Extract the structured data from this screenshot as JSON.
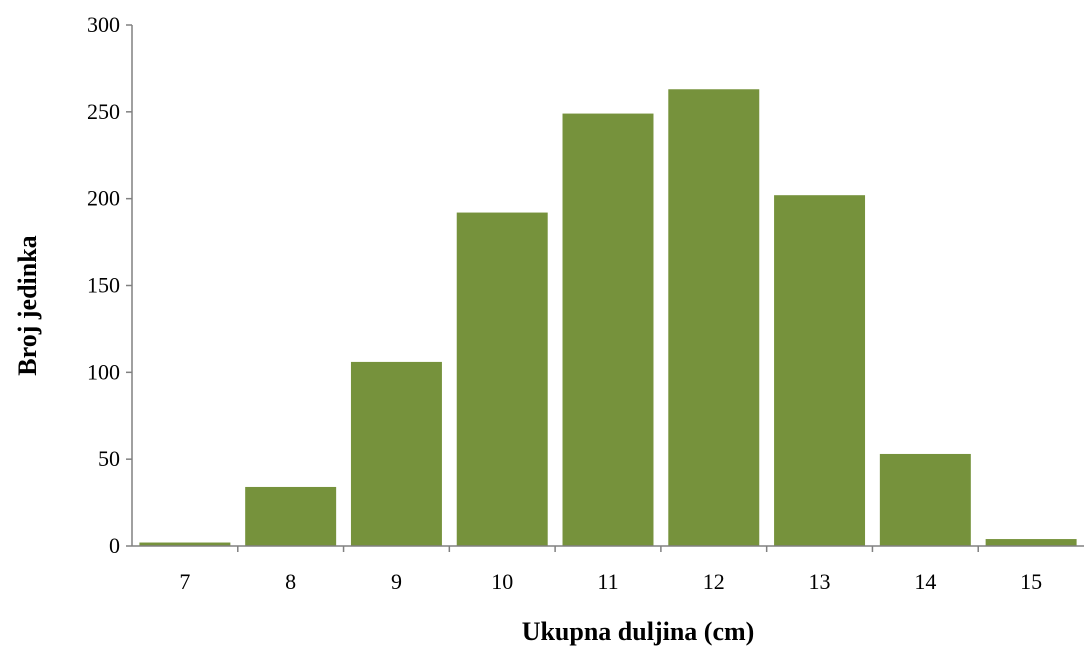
{
  "chart_data": {
    "type": "bar",
    "categories": [
      "7",
      "8",
      "9",
      "10",
      "11",
      "12",
      "13",
      "14",
      "15"
    ],
    "values": [
      2,
      34,
      106,
      192,
      249,
      263,
      202,
      53,
      4
    ],
    "title": "",
    "xlabel": "Ukupna duljina (cm)",
    "ylabel": "Broj jedinka",
    "ylim": [
      0,
      300
    ],
    "yticks": [
      0,
      50,
      100,
      150,
      200,
      250,
      300
    ],
    "grid": false,
    "bar_color": "#76923c"
  }
}
